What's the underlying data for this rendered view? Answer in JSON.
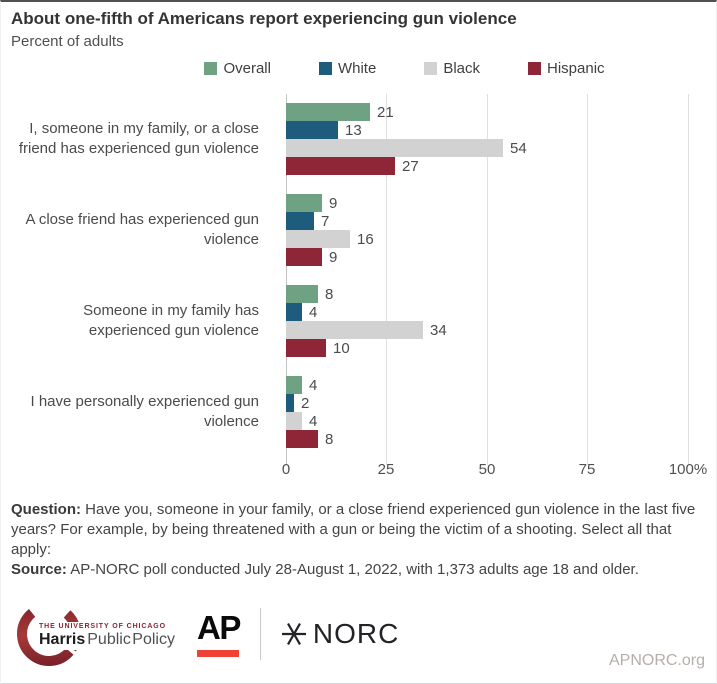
{
  "chart_data": {
    "type": "bar",
    "orientation": "horizontal",
    "title": "About one-fifth of Americans report experiencing gun violence",
    "subtitle": "Percent of adults",
    "categories": [
      "I, someone in my family, or a close friend has experienced gun violence",
      "A close friend has experienced gun violence",
      "Someone in my family has experienced gun violence",
      "I have personally experienced gun violence"
    ],
    "series": [
      {
        "name": "Overall",
        "color": "#6fa183",
        "values": [
          21,
          9,
          8,
          4
        ]
      },
      {
        "name": "White",
        "color": "#1d5c7c",
        "values": [
          13,
          7,
          4,
          2
        ]
      },
      {
        "name": "Black",
        "color": "#d2d2d3",
        "values": [
          54,
          16,
          34,
          4
        ]
      },
      {
        "name": "Hispanic",
        "color": "#8e2638",
        "values": [
          27,
          9,
          10,
          8
        ]
      }
    ],
    "xlim": [
      0,
      100
    ],
    "xticks": [
      "0",
      "25",
      "50",
      "75",
      "100%"
    ],
    "xtick_values": [
      0,
      25,
      50,
      75,
      100
    ],
    "grid": true,
    "legend_position": "top",
    "value_labels": true
  },
  "footnote": {
    "question_label": "Question:",
    "question_text": "Have you, someone in your family, or a close friend experienced gun violence in the last five years? For example, by being threatened with a gun or being the victim of a shooting. Select all that apply:",
    "source_label": "Source:",
    "source_text": "AP-NORC poll conducted July 28-August 1, 2022, with 1,373 adults age 18 and older."
  },
  "footer": {
    "harris_line1": "THE UNIVERSITY OF CHICAGO",
    "harris_line2_bold": "Harris",
    "harris_line2_rest": "Public Policy",
    "ap_label": "AP",
    "norc_label": "NORC",
    "site": "APNORC.org"
  },
  "colors": {
    "overall_green": "#6fa183",
    "white_teal": "#1d5c7c",
    "black_gray": "#d2d2d3",
    "hispanic_maroon": "#8e2638",
    "ap_red": "#ef4135",
    "chicago_maroon": "#8a2432"
  }
}
